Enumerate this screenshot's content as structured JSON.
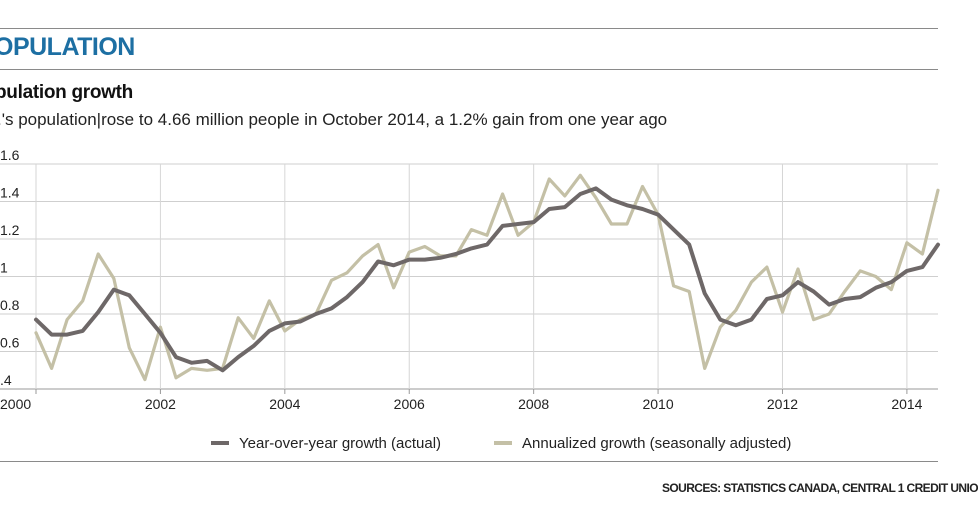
{
  "section_title": "OPULATION",
  "chart_data": {
    "type": "line",
    "title": "pulation growth",
    "subtitle": ".'s population|rose to 4.66 million people in October 2014, a 1.2% gain from one year ago",
    "xlabel": "",
    "ylabel": "",
    "xlim": [
      2000,
      2014.5
    ],
    "ylim": [
      0.4,
      1.6
    ],
    "y_ticks": [
      0.4,
      0.6,
      0.8,
      1,
      1.2,
      1.4,
      1.6
    ],
    "y_tick_labels": [
      ".4",
      "0.6",
      "0.8",
      "1",
      "1.2",
      "1.4",
      "1.6"
    ],
    "x_ticks": [
      2000,
      2002,
      2004,
      2006,
      2008,
      2010,
      2012,
      2014
    ],
    "x_tick_labels": [
      "2000",
      "2002",
      "2004",
      "2006",
      "2008",
      "2010",
      "2012",
      "2014"
    ],
    "grid": true,
    "legend_position": "bottom",
    "x": [
      2000,
      2000.25,
      2000.5,
      2000.75,
      2001,
      2001.25,
      2001.5,
      2001.75,
      2002,
      2002.25,
      2002.5,
      2002.75,
      2003,
      2003.25,
      2003.5,
      2003.75,
      2004,
      2004.25,
      2004.5,
      2004.75,
      2005,
      2005.25,
      2005.5,
      2005.75,
      2006,
      2006.25,
      2006.5,
      2006.75,
      2007,
      2007.25,
      2007.5,
      2007.75,
      2008,
      2008.25,
      2008.5,
      2008.75,
      2009,
      2009.25,
      2009.5,
      2009.75,
      2010,
      2010.25,
      2010.5,
      2010.75,
      2011,
      2011.25,
      2011.5,
      2011.75,
      2012,
      2012.25,
      2012.5,
      2012.75,
      2013,
      2013.25,
      2013.5,
      2013.75,
      2014,
      2014.25,
      2014.5
    ],
    "series": [
      {
        "name": "Year-over-year growth (actual)",
        "color": "#6e6868",
        "values": [
          0.77,
          0.69,
          0.69,
          0.71,
          0.81,
          0.93,
          0.9,
          0.8,
          0.7,
          0.57,
          0.54,
          0.55,
          0.5,
          0.57,
          0.63,
          0.71,
          0.75,
          0.76,
          0.8,
          0.83,
          0.89,
          0.97,
          1.08,
          1.06,
          1.09,
          1.09,
          1.1,
          1.12,
          1.15,
          1.17,
          1.27,
          1.28,
          1.29,
          1.36,
          1.37,
          1.44,
          1.47,
          1.41,
          1.38,
          1.36,
          1.33,
          1.25,
          1.17,
          0.91,
          0.77,
          0.74,
          0.77,
          0.88,
          0.9,
          0.97,
          0.92,
          0.85,
          0.88,
          0.89,
          0.94,
          0.97,
          1.03,
          1.05,
          1.17
        ]
      },
      {
        "name": "Annualized growth (seasonally adjusted)",
        "color": "#c4c0a6",
        "values": [
          0.7,
          0.51,
          0.77,
          0.87,
          1.12,
          0.99,
          0.62,
          0.45,
          0.73,
          0.46,
          0.51,
          0.5,
          0.51,
          0.78,
          0.67,
          0.87,
          0.71,
          0.77,
          0.8,
          0.98,
          1.02,
          1.11,
          1.17,
          0.94,
          1.13,
          1.16,
          1.11,
          1.11,
          1.25,
          1.22,
          1.44,
          1.22,
          1.29,
          1.52,
          1.43,
          1.54,
          1.42,
          1.28,
          1.28,
          1.48,
          1.33,
          0.95,
          0.92,
          0.51,
          0.73,
          0.82,
          0.97,
          1.05,
          0.81,
          1.04,
          0.77,
          0.8,
          0.92,
          1.03,
          1.0,
          0.93,
          1.18,
          1.12,
          1.46
        ]
      }
    ]
  },
  "source": "SOURCES: STATISTICS CANADA, CENTRAL 1 CREDIT UNIO"
}
